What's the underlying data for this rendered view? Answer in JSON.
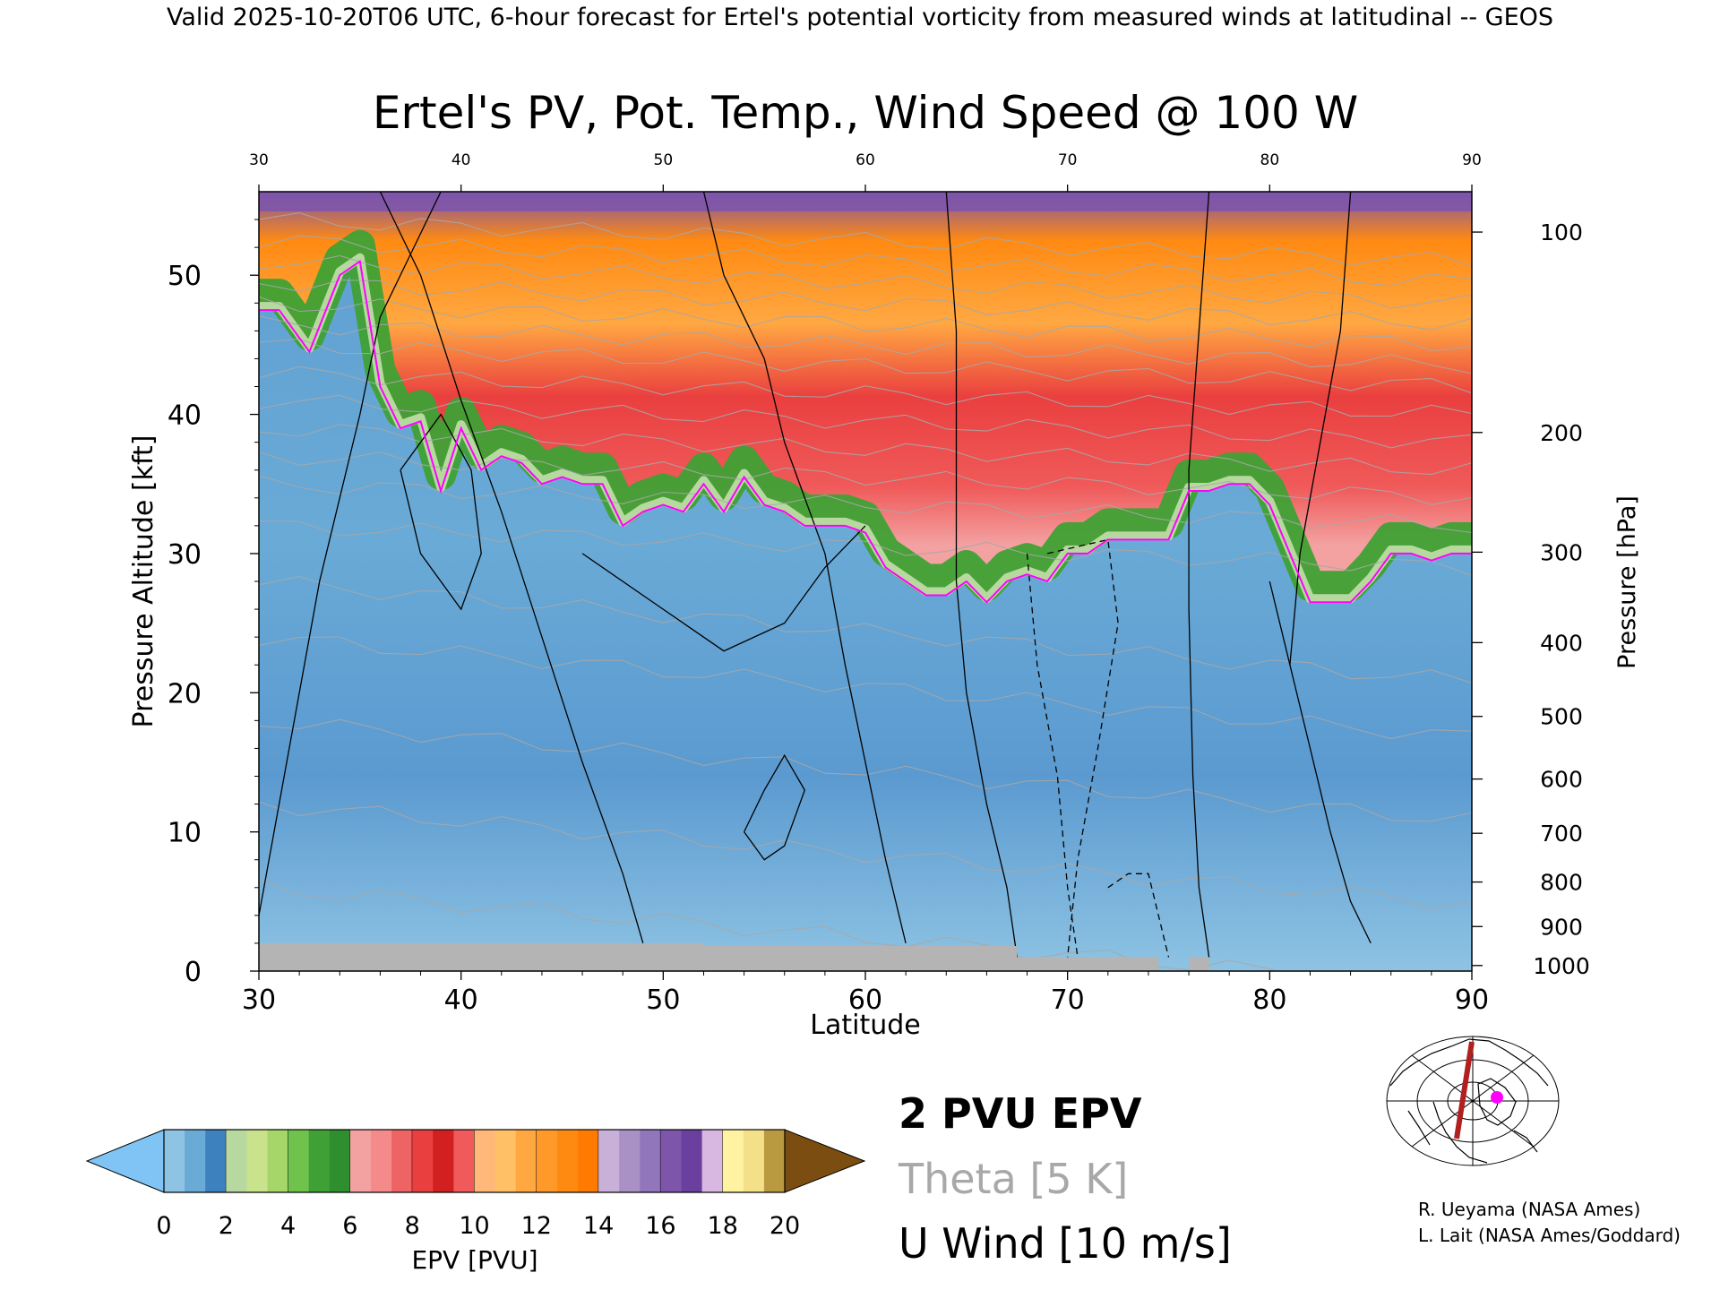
{
  "header": "Valid 2025-10-20T06 UTC, 6-hour forecast for Ertel's potential vorticity from measured winds at latitudinal -- GEOS",
  "chart_data": {
    "type": "heatmap",
    "title": "Ertel's PV, Pot. Temp., Wind Speed @ 100 W",
    "xlabel": "Latitude",
    "ylabel": "Pressure Altitude [kft]",
    "y2label": "Pressure [hPa]",
    "xlim": [
      30,
      90
    ],
    "ylim": [
      0,
      56
    ],
    "x_ticks": [
      30,
      40,
      50,
      60,
      70,
      80,
      90
    ],
    "y_ticks": [
      0,
      10,
      20,
      30,
      40,
      50
    ],
    "pressure_ticks": [
      {
        "hpa": 100,
        "kft": 53.1
      },
      {
        "hpa": 200,
        "kft": 38.7
      },
      {
        "hpa": 300,
        "kft": 30.1
      },
      {
        "hpa": 400,
        "kft": 23.6
      },
      {
        "hpa": 500,
        "kft": 18.3
      },
      {
        "hpa": 600,
        "kft": 13.8
      },
      {
        "hpa": 700,
        "kft": 9.9
      },
      {
        "hpa": 800,
        "kft": 6.4
      },
      {
        "hpa": 900,
        "kft": 3.2
      },
      {
        "hpa": 1000,
        "kft": 0.4
      }
    ],
    "pv2_tropopause_kft": [
      {
        "lat": 30,
        "kft": 47.5
      },
      {
        "lat": 31,
        "kft": 47.5
      },
      {
        "lat": 32.5,
        "kft": 44.5
      },
      {
        "lat": 34,
        "kft": 50
      },
      {
        "lat": 35,
        "kft": 51
      },
      {
        "lat": 36,
        "kft": 42
      },
      {
        "lat": 37,
        "kft": 39
      },
      {
        "lat": 38,
        "kft": 39.5
      },
      {
        "lat": 39,
        "kft": 34.5
      },
      {
        "lat": 40,
        "kft": 39
      },
      {
        "lat": 41,
        "kft": 36
      },
      {
        "lat": 42,
        "kft": 37
      },
      {
        "lat": 43,
        "kft": 36.5
      },
      {
        "lat": 44,
        "kft": 35
      },
      {
        "lat": 45,
        "kft": 35.5
      },
      {
        "lat": 46,
        "kft": 35
      },
      {
        "lat": 47,
        "kft": 35
      },
      {
        "lat": 48,
        "kft": 32
      },
      {
        "lat": 49,
        "kft": 33
      },
      {
        "lat": 50,
        "kft": 33.5
      },
      {
        "lat": 51,
        "kft": 33
      },
      {
        "lat": 52,
        "kft": 35
      },
      {
        "lat": 53,
        "kft": 33
      },
      {
        "lat": 54,
        "kft": 35.5
      },
      {
        "lat": 55,
        "kft": 33.5
      },
      {
        "lat": 56,
        "kft": 33
      },
      {
        "lat": 57,
        "kft": 32
      },
      {
        "lat": 58,
        "kft": 32
      },
      {
        "lat": 59,
        "kft": 32
      },
      {
        "lat": 60,
        "kft": 31.5
      },
      {
        "lat": 61,
        "kft": 29
      },
      {
        "lat": 62,
        "kft": 28
      },
      {
        "lat": 63,
        "kft": 27
      },
      {
        "lat": 64,
        "kft": 27
      },
      {
        "lat": 65,
        "kft": 28
      },
      {
        "lat": 66,
        "kft": 26.5
      },
      {
        "lat": 67,
        "kft": 28
      },
      {
        "lat": 68,
        "kft": 28.5
      },
      {
        "lat": 69,
        "kft": 28
      },
      {
        "lat": 70,
        "kft": 30
      },
      {
        "lat": 71,
        "kft": 30
      },
      {
        "lat": 72,
        "kft": 31
      },
      {
        "lat": 73,
        "kft": 31
      },
      {
        "lat": 74,
        "kft": 31
      },
      {
        "lat": 75,
        "kft": 31
      },
      {
        "lat": 76,
        "kft": 34.5
      },
      {
        "lat": 77,
        "kft": 34.5
      },
      {
        "lat": 78,
        "kft": 35
      },
      {
        "lat": 79,
        "kft": 35
      },
      {
        "lat": 80,
        "kft": 33.5
      },
      {
        "lat": 81,
        "kft": 30
      },
      {
        "lat": 82,
        "kft": 26.5
      },
      {
        "lat": 83,
        "kft": 26.5
      },
      {
        "lat": 84,
        "kft": 26.5
      },
      {
        "lat": 85,
        "kft": 28
      },
      {
        "lat": 86,
        "kft": 30
      },
      {
        "lat": 87,
        "kft": 30
      },
      {
        "lat": 88,
        "kft": 29.5
      },
      {
        "lat": 89,
        "kft": 30
      },
      {
        "lat": 90,
        "kft": 30
      }
    ],
    "surface_kft": [
      {
        "lat": 30,
        "kft": 2
      },
      {
        "lat": 52,
        "kft": 2
      },
      {
        "lat": 52,
        "kft": 1.8
      },
      {
        "lat": 67.5,
        "kft": 1.8
      },
      {
        "lat": 67.5,
        "kft": 1
      },
      {
        "lat": 74.5,
        "kft": 1
      },
      {
        "lat": 74.5,
        "kft": 0
      },
      {
        "lat": 76,
        "kft": 0
      },
      {
        "lat": 76,
        "kft": 1
      },
      {
        "lat": 77,
        "kft": 1
      },
      {
        "lat": 77,
        "kft": 0
      },
      {
        "lat": 90,
        "kft": 0
      }
    ],
    "u_wind_contours": [
      {
        "value": 10,
        "points": [
          [
            30,
            4
          ],
          [
            33,
            28
          ],
          [
            35,
            40
          ],
          [
            36,
            47
          ],
          [
            38,
            53
          ],
          [
            39,
            56
          ]
        ]
      },
      {
        "value": 10,
        "points": [
          [
            36,
            56
          ],
          [
            38,
            50
          ],
          [
            40,
            41
          ],
          [
            42,
            33
          ],
          [
            44,
            24
          ],
          [
            46,
            15
          ],
          [
            48,
            7
          ],
          [
            49,
            2
          ]
        ]
      },
      {
        "value": 10,
        "points": [
          [
            52,
            56
          ],
          [
            53,
            50
          ],
          [
            55,
            44
          ],
          [
            56,
            38
          ],
          [
            58,
            30
          ],
          [
            59,
            22
          ],
          [
            60,
            15
          ],
          [
            61,
            8
          ],
          [
            62,
            2
          ]
        ]
      },
      {
        "value": 0,
        "points": [
          [
            64,
            56
          ],
          [
            64.5,
            46
          ],
          [
            64.5,
            36
          ],
          [
            64.5,
            28
          ],
          [
            65,
            20
          ],
          [
            66,
            12
          ],
          [
            67,
            6
          ],
          [
            67.5,
            1
          ]
        ]
      },
      {
        "value": 0,
        "points": [
          [
            77,
            56
          ],
          [
            76.5,
            46
          ],
          [
            76,
            36
          ],
          [
            76,
            26
          ],
          [
            76.2,
            14
          ],
          [
            76.5,
            6
          ],
          [
            77,
            1
          ]
        ]
      },
      {
        "value": 10,
        "points": [
          [
            80,
            28
          ],
          [
            81,
            22
          ],
          [
            82,
            16
          ],
          [
            83,
            10
          ],
          [
            84,
            5
          ],
          [
            85,
            2
          ]
        ]
      },
      {
        "value": 10,
        "points": [
          [
            84,
            56
          ],
          [
            83.5,
            46
          ],
          [
            82.5,
            38
          ],
          [
            81.5,
            30
          ],
          [
            81,
            22
          ]
        ]
      },
      {
        "value": 10,
        "points": [
          [
            54,
            10
          ],
          [
            55,
            13
          ],
          [
            56,
            15.5
          ],
          [
            57,
            13
          ],
          [
            56,
            9
          ],
          [
            55,
            8
          ],
          [
            54,
            10
          ]
        ]
      },
      {
        "value": 10,
        "points": [
          [
            37,
            36
          ],
          [
            38,
            30
          ],
          [
            40,
            26
          ],
          [
            41,
            30
          ],
          [
            40.5,
            36
          ],
          [
            39,
            40
          ],
          [
            37,
            36
          ]
        ]
      },
      {
        "value": 30,
        "points": [
          [
            46,
            30
          ],
          [
            50,
            26
          ],
          [
            53,
            23
          ],
          [
            56,
            25
          ],
          [
            58,
            29
          ],
          [
            60,
            32
          ]
        ]
      },
      {
        "value": -10,
        "points": [
          [
            69,
            30
          ],
          [
            72,
            31
          ],
          [
            72.5,
            25
          ],
          [
            71.5,
            16
          ],
          [
            70.5,
            8
          ],
          [
            70,
            1
          ]
        ]
      },
      {
        "value": -10,
        "points": [
          [
            68,
            30
          ],
          [
            68.5,
            22
          ],
          [
            69.5,
            14
          ],
          [
            70,
            6
          ],
          [
            70.5,
            1
          ]
        ]
      },
      {
        "value": -10,
        "points": [
          [
            72,
            6
          ],
          [
            73,
            7
          ],
          [
            74,
            7
          ],
          [
            74.5,
            4
          ],
          [
            75,
            1
          ]
        ]
      }
    ],
    "colorbar": {
      "label": "EPV [PVU]",
      "ticks": [
        0,
        2,
        4,
        6,
        8,
        10,
        12,
        14,
        16,
        18,
        20
      ],
      "range": [
        0,
        20
      ],
      "under_color": "#7fc4f4",
      "over_color": "#7b4d10",
      "segments": [
        {
          "from": 0,
          "to": 2,
          "colors": [
            "#8ec3e3",
            "#6aaad6",
            "#3d82bf"
          ]
        },
        {
          "from": 2,
          "to": 4,
          "colors": [
            "#b7d9a0",
            "#c9e38c",
            "#a6d66a"
          ]
        },
        {
          "from": 4,
          "to": 6,
          "colors": [
            "#6fc24b",
            "#3fa135",
            "#2f8f2f"
          ]
        },
        {
          "from": 6,
          "to": 8,
          "colors": [
            "#f3a1a1",
            "#f58a8a",
            "#ee6464"
          ]
        },
        {
          "from": 8,
          "to": 10,
          "colors": [
            "#ea3f3f",
            "#d21f1f",
            "#f05a5a"
          ]
        },
        {
          "from": 10,
          "to": 12,
          "colors": [
            "#ffb87a",
            "#ffc066",
            "#ffa842"
          ]
        },
        {
          "from": 12,
          "to": 14,
          "colors": [
            "#ff9a2a",
            "#ff8a12",
            "#ff7a00"
          ]
        },
        {
          "from": 14,
          "to": 16,
          "colors": [
            "#c8b0d8",
            "#a991c6",
            "#9276bb"
          ]
        },
        {
          "from": 16,
          "to": 18,
          "colors": [
            "#7d55ab",
            "#6a3f9e",
            "#d8b8e0"
          ]
        },
        {
          "from": 18,
          "to": 20,
          "colors": [
            "#fff2a0",
            "#f5e08a",
            "#b99a40"
          ]
        }
      ]
    },
    "legend": [
      {
        "text": "2 PVU EPV",
        "color": "#ff00ff"
      },
      {
        "text": "Theta [5 K]",
        "color": "#a8a8a8"
      },
      {
        "text": "U Wind [10 m/s]",
        "color": "#000000"
      }
    ],
    "colors": {
      "stratosphere_violet": "#7d55ab",
      "stratosphere_orange": "#ff8a12",
      "stratosphere_red": "#ea3f3f",
      "tropopause_green": "#3fa135",
      "troposphere_blue": "#6aaad6",
      "pv_contour": "#ff00ff",
      "theta_contour": "#a8a8a8",
      "ground": "#b4b4b4",
      "section_line": "#b02020"
    }
  },
  "credits": [
    "R. Ueyama (NASA Ames)",
    "L. Lait (NASA Ames/Goddard)"
  ]
}
